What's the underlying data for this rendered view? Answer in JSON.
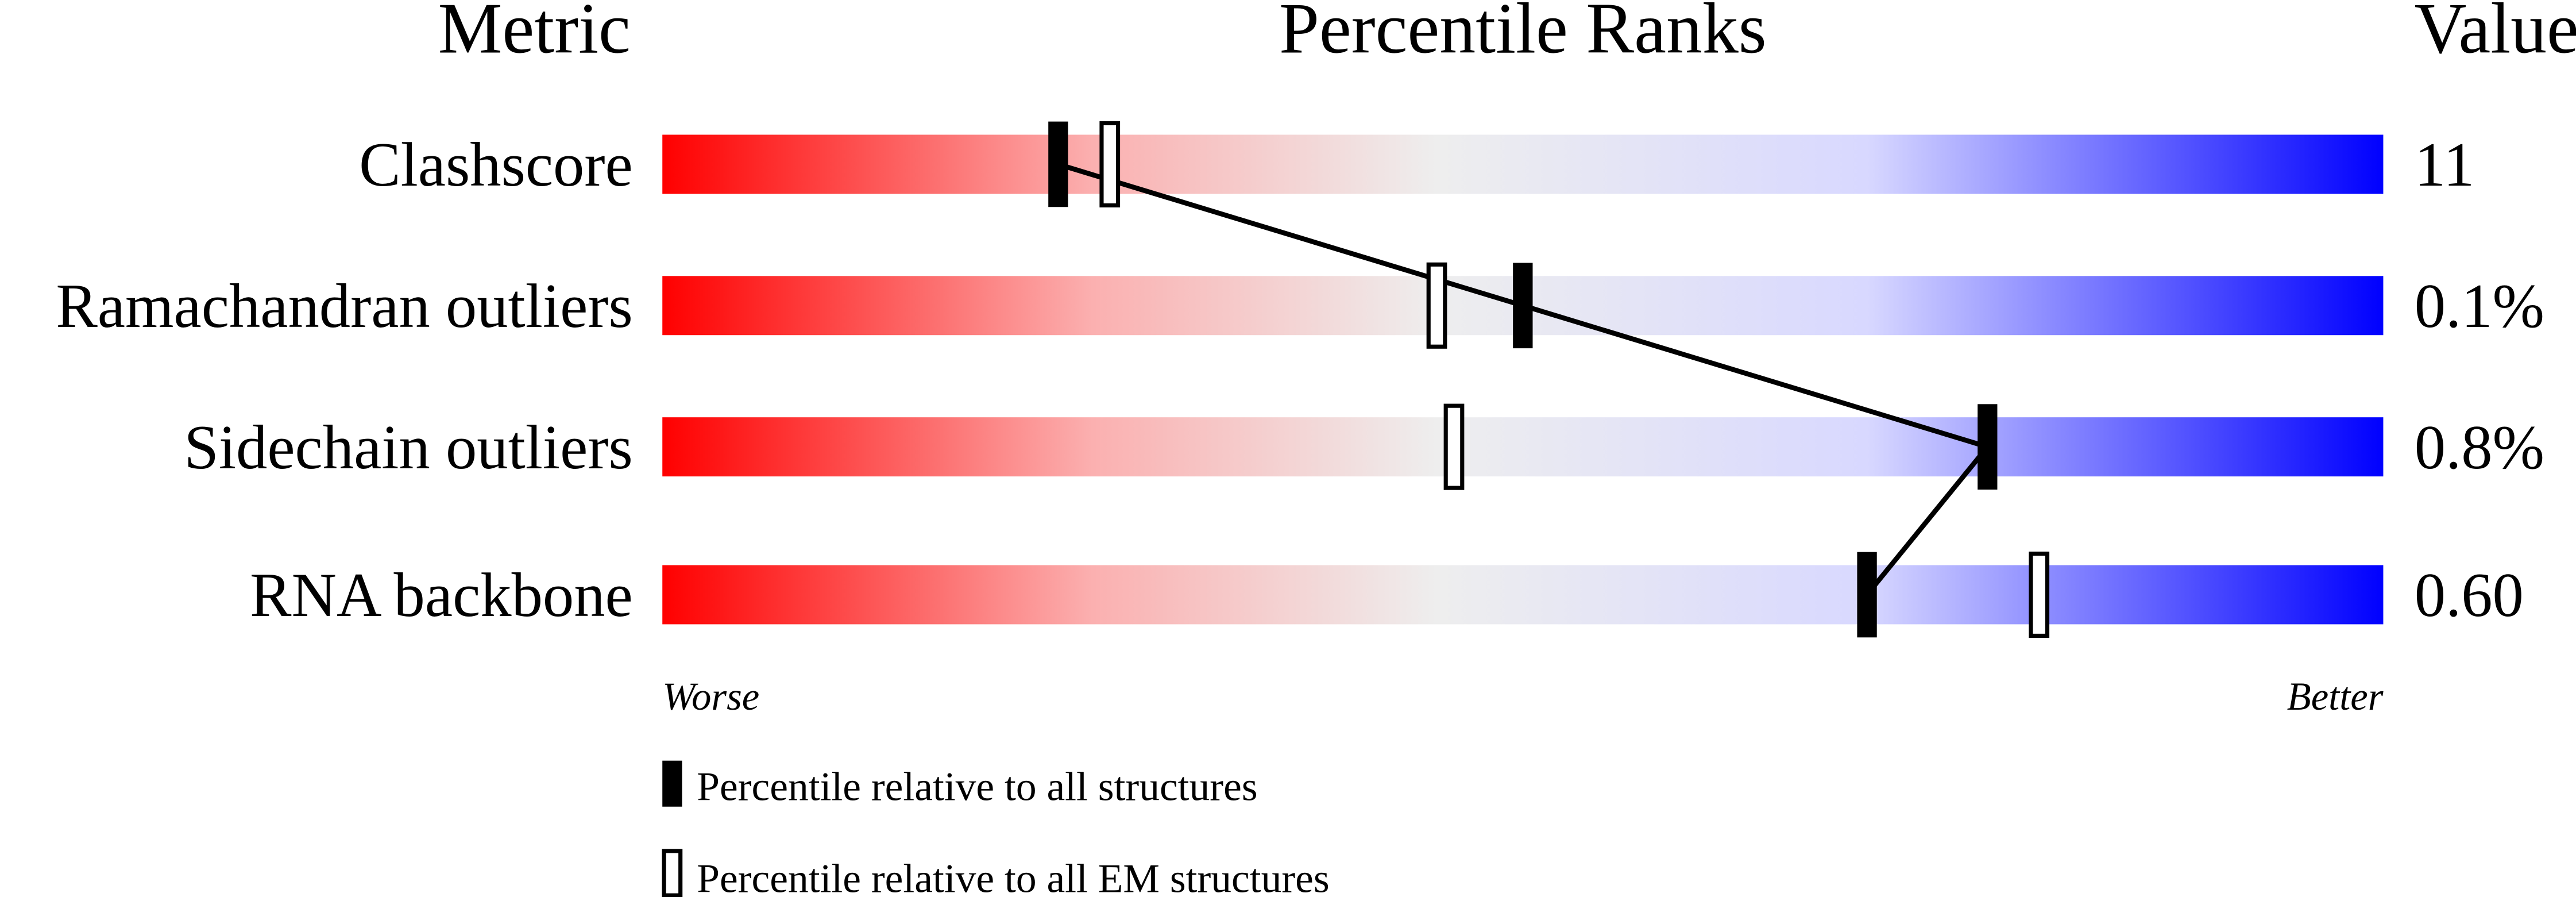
{
  "chart_data": {
    "type": "bar",
    "headers": {
      "metric": "Metric",
      "ranks": "Percentile Ranks",
      "value": "Value"
    },
    "xlim": [
      0,
      100
    ],
    "axis_labels": {
      "left": "Worse",
      "right": "Better"
    },
    "rows": [
      {
        "metric": "Clashscore",
        "value": "11",
        "percentile_all": 23,
        "percentile_em": 26
      },
      {
        "metric": "Ramachandran outliers",
        "value": "0.1%",
        "percentile_all": 50,
        "percentile_em": 45
      },
      {
        "metric": "Sidechain outliers",
        "value": "0.8%",
        "percentile_all": 77,
        "percentile_em": 46
      },
      {
        "metric": "RNA backbone",
        "value": "0.60",
        "percentile_all": 70,
        "percentile_em": 80
      }
    ],
    "legend": {
      "all": "Percentile relative to all structures",
      "em": "Percentile relative to all EM structures"
    },
    "colors": {
      "worse": "#ff0000",
      "middle": "#eeeeee",
      "light_blue": "#d8d8ff",
      "better": "#0000ff",
      "marker": "#000000"
    }
  }
}
